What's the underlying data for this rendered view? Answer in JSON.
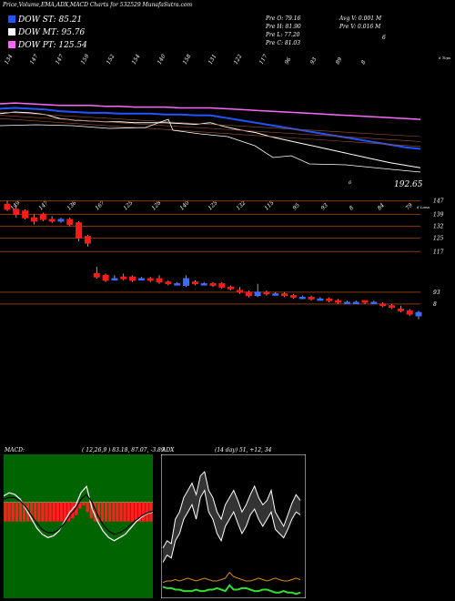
{
  "header": {
    "title": "Price,Volume,EMA,ADX,MACD Charts for 532529 MunafaSutra.com"
  },
  "legend": [
    {
      "label": "DOW ST: 85.21",
      "color": "#2255ff"
    },
    {
      "label": "DOW MT: 95.76",
      "color": "#ffffff"
    },
    {
      "label": "DOW PT: 125.54",
      "color": "#ff66ff"
    }
  ],
  "ohlc": {
    "open": "Pre   O: 79.16",
    "high": "Pre   H: 81.90",
    "low": "Pre   L: 77.20",
    "close": "Pre   C: 81.03",
    "avg_volume": "Avg V: 0.001 M",
    "prev_volume": "Pre   V: 0.016  M",
    "marker": "6"
  },
  "colors": {
    "up": "#3d6bff",
    "down": "#ff1a1a",
    "ema_short": "#2255ff",
    "ema_mid": "#ffffff",
    "ema_long": "#ff66ff",
    "grid": "#8b3a10",
    "macd_hist": "#ff2020",
    "adx_fill": "#000000"
  },
  "chart_data": [
    {
      "type": "line",
      "panel": "ema",
      "top_labels": [
        "134",
        "147",
        "147",
        "159",
        "152",
        "154",
        "140",
        "158",
        "131",
        "122",
        "117",
        "96",
        "93",
        "89",
        "8"
      ],
      "top_label_suffix": "6 Tops",
      "bottom_labels": [
        "6",
        "192.65"
      ],
      "series": [
        {
          "name": "",
          "values": [
            148,
            150,
            149,
            147,
            142,
            140,
            139,
            138,
            138,
            137,
            137,
            137,
            136,
            135,
            137,
            132,
            128,
            125,
            120,
            116,
            112,
            108,
            104,
            100,
            96,
            92,
            88,
            85,
            82
          ]
        },
        {
          "name": "",
          "values": [
            160,
            161,
            160,
            159,
            158,
            158,
            158,
            157,
            157,
            156,
            156,
            156,
            155,
            155,
            155,
            154,
            153,
            152,
            151,
            150,
            149,
            148,
            147,
            146,
            145,
            144,
            143,
            142,
            141
          ]
        },
        {
          "name": "",
          "values": [
            154,
            155,
            154,
            153,
            151,
            150,
            149,
            149,
            148,
            148,
            148,
            147,
            147,
            146,
            146,
            143,
            140,
            137,
            134,
            131,
            128,
            125,
            122,
            119,
            116,
            113,
            110,
            107,
            105
          ]
        }
      ]
    },
    {
      "type": "candlestick",
      "panel": "price",
      "top_labels": [
        "149",
        "147",
        "136",
        "167",
        "125",
        "128",
        "140",
        "125",
        "132",
        "115",
        "95",
        "93",
        "8",
        "84",
        "79"
      ],
      "top_label_suffix": "6 Lows",
      "y_ticks": [
        "147",
        "139",
        "132",
        "125",
        "117",
        "93",
        "8"
      ],
      "candles": [
        {
          "o": 145,
          "c": 142,
          "h": 147,
          "l": 141
        },
        {
          "o": 142,
          "c": 139,
          "h": 144,
          "l": 137
        },
        {
          "o": 141,
          "c": 137,
          "h": 142,
          "l": 136
        },
        {
          "o": 137,
          "c": 135,
          "h": 139,
          "l": 133
        },
        {
          "o": 139,
          "c": 136,
          "h": 140,
          "l": 135
        },
        {
          "o": 136,
          "c": 135,
          "h": 138,
          "l": 134
        },
        {
          "o": 135,
          "c": 136,
          "h": 137,
          "l": 134
        },
        {
          "o": 136,
          "c": 133,
          "h": 137,
          "l": 132
        },
        {
          "o": 134,
          "c": 125,
          "h": 135,
          "l": 123
        },
        {
          "o": 126,
          "c": 122,
          "h": 127,
          "l": 120
        },
        {
          "o": 104,
          "c": 102,
          "h": 108,
          "l": 101
        },
        {
          "o": 103,
          "c": 100,
          "h": 104,
          "l": 99
        },
        {
          "o": 101,
          "c": 101,
          "h": 103,
          "l": 100
        },
        {
          "o": 102,
          "c": 101,
          "h": 104,
          "l": 100
        },
        {
          "o": 102,
          "c": 100,
          "h": 103,
          "l": 99
        },
        {
          "o": 101,
          "c": 101,
          "h": 102,
          "l": 100
        },
        {
          "o": 101,
          "c": 100,
          "h": 102,
          "l": 99
        },
        {
          "o": 101,
          "c": 99,
          "h": 103,
          "l": 98
        },
        {
          "o": 99,
          "c": 98,
          "h": 100,
          "l": 97
        },
        {
          "o": 98,
          "c": 98,
          "h": 99,
          "l": 97
        },
        {
          "o": 97,
          "c": 101,
          "h": 103,
          "l": 96
        },
        {
          "o": 99,
          "c": 98,
          "h": 100,
          "l": 97
        },
        {
          "o": 98,
          "c": 98,
          "h": 99,
          "l": 97
        },
        {
          "o": 98,
          "c": 97,
          "h": 99,
          "l": 96
        },
        {
          "o": 98,
          "c": 96,
          "h": 99,
          "l": 95
        },
        {
          "o": 96,
          "c": 95,
          "h": 97,
          "l": 94
        },
        {
          "o": 94,
          "c": 93,
          "h": 96,
          "l": 92
        },
        {
          "o": 93,
          "c": 91,
          "h": 94,
          "l": 90
        },
        {
          "o": 91,
          "c": 93,
          "h": 98,
          "l": 90
        },
        {
          "o": 93,
          "c": 92,
          "h": 94,
          "l": 91
        },
        {
          "o": 92,
          "c": 92,
          "h": 93,
          "l": 91
        },
        {
          "o": 92,
          "c": 91,
          "h": 93,
          "l": 90
        },
        {
          "o": 91,
          "c": 90,
          "h": 92,
          "l": 89
        },
        {
          "o": 90,
          "c": 90,
          "h": 91,
          "l": 89
        },
        {
          "o": 90,
          "c": 89,
          "h": 91,
          "l": 88
        },
        {
          "o": 89,
          "c": 89,
          "h": 90,
          "l": 88
        },
        {
          "o": 89,
          "c": 88,
          "h": 90,
          "l": 87
        },
        {
          "o": 88,
          "c": 87,
          "h": 89,
          "l": 86
        },
        {
          "o": 87,
          "c": 87,
          "h": 88,
          "l": 86
        },
        {
          "o": 87,
          "c": 87,
          "h": 88,
          "l": 86
        },
        {
          "o": 88,
          "c": 87,
          "h": 88,
          "l": 86
        },
        {
          "o": 87,
          "c": 87,
          "h": 88,
          "l": 86
        },
        {
          "o": 86,
          "c": 85,
          "h": 87,
          "l": 84
        },
        {
          "o": 85,
          "c": 84,
          "h": 86,
          "l": 83
        },
        {
          "o": 83,
          "c": 82,
          "h": 85,
          "l": 81
        },
        {
          "o": 82,
          "c": 80,
          "h": 83,
          "l": 79
        },
        {
          "o": 79,
          "c": 81,
          "h": 82,
          "l": 77
        }
      ]
    },
    {
      "type": "bar",
      "panel": "macd",
      "title": "MACD:",
      "params": "( 12,26,9 ) 83.18, 87.07, -3.89",
      "hist_values": [
        -0.6,
        -0.6,
        -0.6,
        -0.6,
        -0.6,
        -0.6,
        -0.6,
        -0.6,
        -0.6,
        -0.6,
        -0.6,
        -0.6,
        -0.6,
        -0.6,
        -0.6,
        -0.6,
        -0.6,
        -0.6,
        -0.5,
        -0.4,
        -0.2,
        -0.1,
        -0.3,
        -0.5,
        -0.6,
        -0.6,
        -0.6,
        -0.6,
        -0.6,
        -0.6,
        -0.6,
        -0.6,
        -0.6,
        -0.6,
        -0.6,
        -0.6,
        -0.6,
        -0.6,
        -0.6,
        -0.6
      ],
      "series": [
        {
          "name": "",
          "values": [
            0.2,
            0.3,
            0.25,
            0.1,
            -0.2,
            -0.5,
            -0.8,
            -1.0,
            -1.1,
            -1.05,
            -0.9,
            -0.6,
            -0.3,
            -0.1,
            0.3,
            0.5,
            -0.2,
            -0.6,
            -0.9,
            -1.1,
            -1.2,
            -1.1,
            -1.0,
            -0.8,
            -0.6,
            -0.45,
            -0.35,
            -0.3
          ]
        },
        {
          "name": "",
          "values": [
            0.1,
            0.15,
            0.15,
            0.05,
            -0.15,
            -0.4,
            -0.65,
            -0.85,
            -0.95,
            -0.95,
            -0.85,
            -0.65,
            -0.4,
            -0.2,
            0.1,
            0.25,
            0.0,
            -0.4,
            -0.7,
            -0.9,
            -1.0,
            -0.95,
            -0.85,
            -0.7,
            -0.55,
            -0.42,
            -0.33,
            -0.28
          ]
        }
      ]
    },
    {
      "type": "line",
      "panel": "adx",
      "title": "ADX",
      "params": "(14  day) 51,  +12,  34",
      "series": [
        {
          "name": "",
          "values": [
            35,
            40,
            38,
            55,
            60,
            70,
            75,
            80,
            72,
            85,
            88,
            75,
            70,
            60,
            55,
            65,
            70,
            75,
            68,
            60,
            65,
            72,
            78,
            70,
            65,
            68,
            75,
            60,
            55,
            50,
            58,
            66,
            72,
            68
          ]
        },
        {
          "name": "",
          "values": [
            25,
            30,
            28,
            40,
            45,
            55,
            60,
            65,
            55,
            70,
            75,
            60,
            55,
            45,
            40,
            50,
            55,
            60,
            52,
            45,
            50,
            58,
            62,
            55,
            50,
            55,
            60,
            48,
            45,
            42,
            48,
            55,
            60,
            58
          ]
        },
        {
          "name": "",
          "values": [
            11,
            12,
            12,
            13,
            12,
            13,
            14,
            13,
            12,
            13,
            14,
            13,
            12,
            12,
            13,
            14,
            18,
            15,
            14,
            13,
            12,
            12,
            13,
            14,
            13,
            12,
            13,
            14,
            13,
            12,
            12,
            13,
            14,
            13
          ]
        },
        {
          "name": "",
          "values": [
            8,
            7,
            7,
            6,
            6,
            5,
            5,
            5,
            6,
            5,
            5,
            6,
            6,
            7,
            6,
            5,
            9,
            6,
            6,
            7,
            7,
            6,
            5,
            5,
            6,
            6,
            5,
            4,
            4,
            5,
            4,
            4,
            3,
            4
          ]
        }
      ]
    }
  ]
}
